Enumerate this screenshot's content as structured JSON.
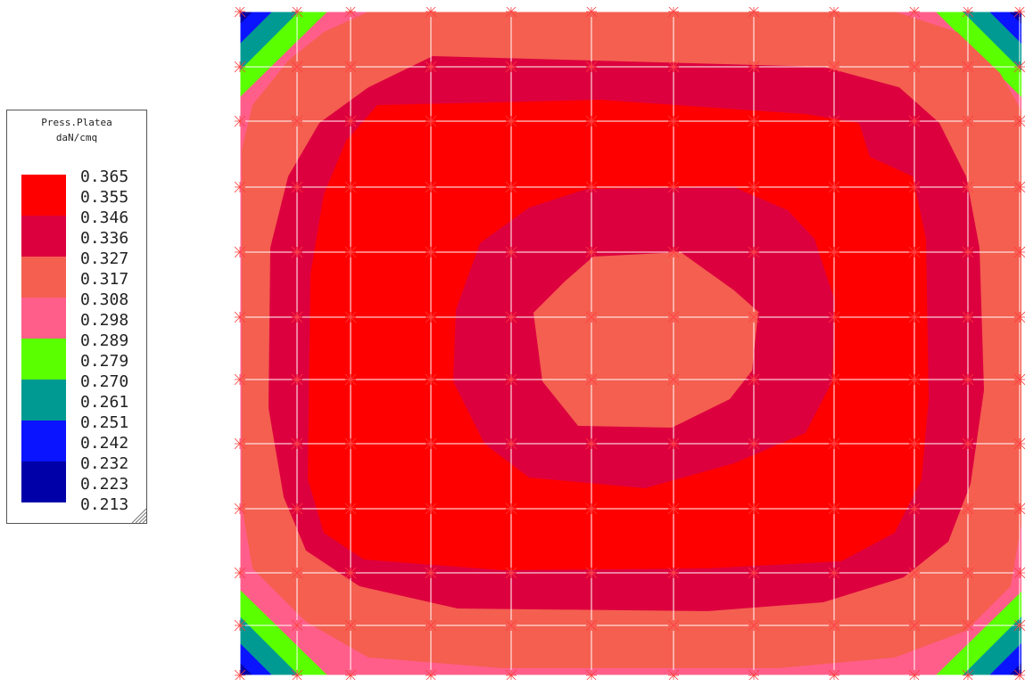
{
  "legend": {
    "title": "Press.Platea",
    "unit": "daN/cmq",
    "labels": [
      "0.365",
      "0.355",
      "0.346",
      "0.336",
      "0.327",
      "0.317",
      "0.308",
      "0.298",
      "0.289",
      "0.279",
      "0.270",
      "0.261",
      "0.251",
      "0.242",
      "0.232",
      "0.223",
      "0.213"
    ],
    "bands": [
      {
        "color": "#ff0000",
        "range": "0.355-0.365"
      },
      {
        "color": "#dd003e",
        "range": "0.336-0.346"
      },
      {
        "color": "#f45f50",
        "range": "0.317-0.327"
      },
      {
        "color": "#ff5e8a",
        "range": "0.298-0.308"
      },
      {
        "color": "#5aff00",
        "range": "0.279-0.289"
      },
      {
        "color": "#009a92",
        "range": "0.261-0.270"
      },
      {
        "color": "#0a14ff",
        "range": "0.242-0.251"
      },
      {
        "color": "#0000a8",
        "range": "0.223-0.232"
      }
    ]
  },
  "colors": {
    "grid": "#ffffff",
    "node": "#ff3b3b"
  }
}
